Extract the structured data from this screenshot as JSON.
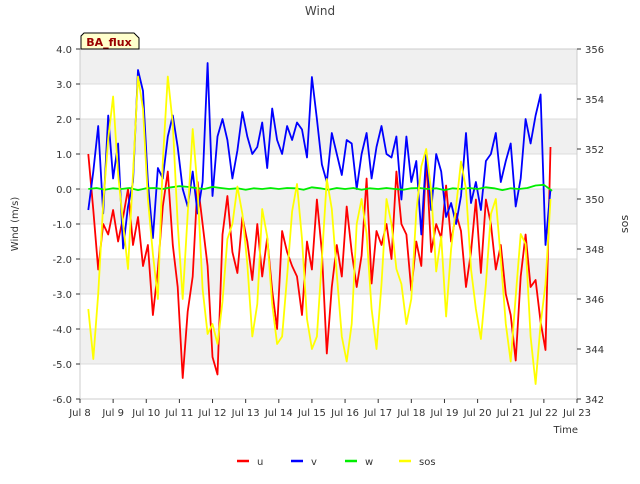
{
  "chart_data": {
    "type": "line",
    "title": "Wind",
    "annotation": "BA_flux",
    "xlabel": "Time",
    "ylabel_left": "Wind (m/s)",
    "ylabel_right": "sos",
    "x_range": [
      8.0,
      23.0
    ],
    "ylim_left": [
      -6.0,
      4.0
    ],
    "ylim_right": [
      342,
      356
    ],
    "x_ticks": [
      {
        "v": 8,
        "label": "Jul 8"
      },
      {
        "v": 9,
        "label": "Jul 9"
      },
      {
        "v": 10,
        "label": "Jul 10"
      },
      {
        "v": 11,
        "label": "Jul 11"
      },
      {
        "v": 12,
        "label": "Jul 12"
      },
      {
        "v": 13,
        "label": "Jul 13"
      },
      {
        "v": 14,
        "label": "Jul 14"
      },
      {
        "v": 15,
        "label": "Jul 15"
      },
      {
        "v": 16,
        "label": "Jul 16"
      },
      {
        "v": 17,
        "label": "Jul 17"
      },
      {
        "v": 18,
        "label": "Jul 18"
      },
      {
        "v": 19,
        "label": "Jul 19"
      },
      {
        "v": 20,
        "label": "Jul 20"
      },
      {
        "v": 21,
        "label": "Jul 21"
      },
      {
        "v": 22,
        "label": "Jul 22"
      },
      {
        "v": 23,
        "label": "Jul 23"
      }
    ],
    "y_ticks_left": [
      {
        "v": -6,
        "label": "-6.0"
      },
      {
        "v": -5,
        "label": "-5.0"
      },
      {
        "v": -4,
        "label": "-4.0"
      },
      {
        "v": -3,
        "label": "-3.0"
      },
      {
        "v": -2,
        "label": "-2.0"
      },
      {
        "v": -1,
        "label": "-1.0"
      },
      {
        "v": 0,
        "label": "0.0"
      },
      {
        "v": 1,
        "label": "1.0"
      },
      {
        "v": 2,
        "label": "2.0"
      },
      {
        "v": 3,
        "label": "3.0"
      },
      {
        "v": 4,
        "label": "4.0"
      }
    ],
    "y_ticks_right": [
      {
        "v": 342,
        "label": "342"
      },
      {
        "v": 344,
        "label": "344"
      },
      {
        "v": 346,
        "label": "346"
      },
      {
        "v": 348,
        "label": "348"
      },
      {
        "v": 350,
        "label": "350"
      },
      {
        "v": 352,
        "label": "352"
      },
      {
        "v": 354,
        "label": "354"
      },
      {
        "v": 356,
        "label": "356"
      }
    ],
    "grid": true,
    "legend_position": "bottom-center",
    "series": [
      {
        "name": "u",
        "color": "#ff0000",
        "axis": "left",
        "x": [
          8.25,
          8.4,
          8.55,
          8.7,
          8.85,
          9.0,
          9.15,
          9.3,
          9.45,
          9.6,
          9.75,
          9.9,
          10.05,
          10.2,
          10.35,
          10.5,
          10.65,
          10.8,
          10.95,
          11.1,
          11.25,
          11.4,
          11.55,
          11.7,
          11.85,
          12.0,
          12.15,
          12.3,
          12.45,
          12.6,
          12.75,
          12.9,
          13.05,
          13.2,
          13.35,
          13.5,
          13.65,
          13.8,
          13.95,
          14.1,
          14.25,
          14.4,
          14.55,
          14.7,
          14.85,
          15.0,
          15.15,
          15.3,
          15.45,
          15.6,
          15.75,
          15.9,
          16.05,
          16.2,
          16.35,
          16.5,
          16.65,
          16.8,
          16.95,
          17.1,
          17.25,
          17.4,
          17.55,
          17.7,
          17.85,
          18.0,
          18.15,
          18.3,
          18.45,
          18.6,
          18.75,
          18.9,
          19.05,
          19.2,
          19.35,
          19.5,
          19.65,
          19.8,
          19.95,
          20.1,
          20.25,
          20.4,
          20.55,
          20.7,
          20.85,
          21.0,
          21.15,
          21.3,
          21.45,
          21.6,
          21.75,
          21.9,
          22.05,
          22.2
        ],
        "y": [
          1.0,
          -0.6,
          -2.3,
          -1.0,
          -1.3,
          -0.6,
          -1.5,
          -0.8,
          0.0,
          -1.6,
          -0.8,
          -2.2,
          -1.6,
          -3.6,
          -2.3,
          -0.5,
          0.5,
          -1.6,
          -2.8,
          -5.4,
          -3.5,
          -2.5,
          0.2,
          -1.0,
          -2.2,
          -4.8,
          -5.3,
          -1.3,
          -0.2,
          -1.8,
          -2.4,
          -0.8,
          -1.5,
          -2.6,
          -1.0,
          -2.5,
          -1.4,
          -2.9,
          -4.0,
          -1.2,
          -1.8,
          -2.2,
          -2.5,
          -3.6,
          -1.5,
          -2.3,
          -0.3,
          -1.8,
          -4.7,
          -2.8,
          -1.6,
          -2.5,
          -0.5,
          -1.8,
          -2.8,
          -1.9,
          0.3,
          -2.7,
          -1.2,
          -1.6,
          -1.0,
          -2.0,
          0.5,
          -1.0,
          -1.3,
          -2.9,
          -1.5,
          -2.2,
          0.9,
          -1.8,
          -1.0,
          -1.4,
          0.1,
          -1.5,
          -0.7,
          -1.2,
          -2.8,
          -1.8,
          -0.3,
          -2.4,
          -0.3,
          -1.0,
          -2.3,
          -1.6,
          -3.0,
          -3.6,
          -4.9,
          -2.5,
          -1.3,
          -2.8,
          -2.6,
          -3.8,
          -4.6,
          1.2
        ]
      },
      {
        "name": "v",
        "color": "#0000ff",
        "axis": "left",
        "x": [
          8.25,
          8.4,
          8.55,
          8.7,
          8.85,
          9.0,
          9.15,
          9.3,
          9.45,
          9.6,
          9.75,
          9.9,
          10.05,
          10.2,
          10.35,
          10.5,
          10.65,
          10.8,
          10.95,
          11.1,
          11.25,
          11.4,
          11.55,
          11.7,
          11.85,
          12.0,
          12.15,
          12.3,
          12.45,
          12.6,
          12.75,
          12.9,
          13.05,
          13.2,
          13.35,
          13.5,
          13.65,
          13.8,
          13.95,
          14.1,
          14.25,
          14.4,
          14.55,
          14.7,
          14.85,
          15.0,
          15.15,
          15.3,
          15.45,
          15.6,
          15.75,
          15.9,
          16.05,
          16.2,
          16.35,
          16.5,
          16.65,
          16.8,
          16.95,
          17.1,
          17.25,
          17.4,
          17.55,
          17.7,
          17.85,
          18.0,
          18.15,
          18.3,
          18.45,
          18.6,
          18.75,
          18.9,
          19.05,
          19.2,
          19.35,
          19.5,
          19.65,
          19.8,
          19.95,
          20.1,
          20.25,
          20.4,
          20.55,
          20.7,
          20.85,
          21.0,
          21.15,
          21.3,
          21.45,
          21.6,
          21.75,
          21.9,
          22.05,
          22.2
        ],
        "y": [
          -0.6,
          0.5,
          1.8,
          -0.7,
          2.1,
          0.3,
          1.3,
          -1.7,
          -0.5,
          0.2,
          3.4,
          2.8,
          0.2,
          -1.4,
          0.6,
          0.3,
          1.5,
          2.1,
          1.2,
          0.0,
          -0.5,
          0.5,
          -0.7,
          0.2,
          3.6,
          -0.2,
          1.5,
          2.0,
          1.4,
          0.3,
          1.1,
          2.2,
          1.5,
          1.0,
          1.2,
          1.9,
          0.6,
          2.3,
          1.4,
          1.0,
          1.8,
          1.4,
          1.9,
          1.7,
          0.9,
          3.2,
          2.0,
          0.7,
          0.2,
          1.6,
          1.0,
          0.4,
          1.4,
          1.3,
          0.0,
          1.0,
          1.6,
          0.3,
          1.2,
          1.8,
          1.0,
          0.9,
          1.5,
          -0.3,
          1.5,
          0.2,
          0.8,
          -1.3,
          1.0,
          -0.6,
          1.0,
          0.5,
          -0.8,
          -0.4,
          -1.0,
          -0.2,
          1.6,
          -0.4,
          0.2,
          -0.6,
          0.8,
          1.0,
          1.6,
          0.2,
          0.8,
          1.3,
          -0.5,
          0.3,
          2.0,
          1.3,
          2.1,
          2.7,
          -1.6,
          0.0
        ]
      },
      {
        "name": "w",
        "color": "#00ee00",
        "axis": "left",
        "x": [
          8.25,
          8.5,
          8.75,
          9.0,
          9.25,
          9.5,
          9.75,
          10.0,
          10.25,
          10.5,
          10.75,
          11.0,
          11.25,
          11.5,
          11.75,
          12.0,
          12.25,
          12.5,
          12.75,
          13.0,
          13.25,
          13.5,
          13.75,
          14.0,
          14.25,
          14.5,
          14.75,
          15.0,
          15.25,
          15.5,
          15.75,
          16.0,
          16.25,
          16.5,
          16.75,
          17.0,
          17.25,
          17.5,
          17.75,
          18.0,
          18.25,
          18.5,
          18.75,
          19.0,
          19.25,
          19.5,
          19.75,
          20.0,
          20.25,
          20.5,
          20.75,
          21.0,
          21.25,
          21.5,
          21.75,
          22.0,
          22.25
        ],
        "y": [
          0.0,
          0.03,
          -0.02,
          0.02,
          0.0,
          0.03,
          -0.03,
          0.02,
          0.03,
          0.0,
          0.05,
          0.08,
          0.06,
          0.03,
          0.0,
          0.06,
          0.03,
          0.0,
          0.02,
          -0.02,
          0.02,
          0.0,
          0.03,
          0.0,
          0.03,
          0.02,
          -0.02,
          0.05,
          0.02,
          -0.02,
          0.03,
          0.0,
          0.03,
          -0.02,
          0.02,
          0.0,
          0.03,
          0.0,
          -0.02,
          0.02,
          0.03,
          0.0,
          0.02,
          -0.03,
          0.02,
          0.0,
          0.03,
          0.0,
          0.05,
          0.02,
          -0.03,
          0.02,
          0.0,
          0.03,
          0.1,
          0.12,
          -0.05
        ]
      },
      {
        "name": "sos",
        "color": "#ffff00",
        "axis": "right",
        "x": [
          8.25,
          8.4,
          8.55,
          8.7,
          8.85,
          9.0,
          9.15,
          9.3,
          9.45,
          9.6,
          9.75,
          9.9,
          10.05,
          10.2,
          10.35,
          10.5,
          10.65,
          10.8,
          10.95,
          11.1,
          11.25,
          11.4,
          11.55,
          11.7,
          11.85,
          12.0,
          12.15,
          12.3,
          12.45,
          12.6,
          12.75,
          12.9,
          13.05,
          13.2,
          13.35,
          13.5,
          13.65,
          13.8,
          13.95,
          14.1,
          14.25,
          14.4,
          14.55,
          14.7,
          14.85,
          15.0,
          15.15,
          15.3,
          15.45,
          15.6,
          15.75,
          15.9,
          16.05,
          16.2,
          16.35,
          16.5,
          16.65,
          16.8,
          16.95,
          17.1,
          17.25,
          17.4,
          17.55,
          17.7,
          17.85,
          18.0,
          18.15,
          18.3,
          18.45,
          18.6,
          18.75,
          18.9,
          19.05,
          19.2,
          19.35,
          19.5,
          19.65,
          19.8,
          19.95,
          20.1,
          20.25,
          20.4,
          20.55,
          20.7,
          20.85,
          21.0,
          21.15,
          21.3,
          21.45,
          21.6,
          21.75,
          21.9,
          22.05,
          22.2
        ],
        "y": [
          345.6,
          343.6,
          346.2,
          349.8,
          352.4,
          354.1,
          351.0,
          349.0,
          347.2,
          351.0,
          354.9,
          353.6,
          350.0,
          347.8,
          346.0,
          351.5,
          354.9,
          353.0,
          349.0,
          346.0,
          349.4,
          352.8,
          350.4,
          346.4,
          344.6,
          345.0,
          344.2,
          345.9,
          348.4,
          349.0,
          350.5,
          349.4,
          347.4,
          344.5,
          345.8,
          349.6,
          348.5,
          345.8,
          344.2,
          344.5,
          346.9,
          349.5,
          350.6,
          348.4,
          345.2,
          344.0,
          344.5,
          347.6,
          350.8,
          349.6,
          347.0,
          344.5,
          343.5,
          345.0,
          349.0,
          350.0,
          348.6,
          345.6,
          344.0,
          346.6,
          350.0,
          349.0,
          347.2,
          346.6,
          345.0,
          346.0,
          349.5,
          351.3,
          352.0,
          350.3,
          347.1,
          348.5,
          345.3,
          348.0,
          349.7,
          351.5,
          350.4,
          347.2,
          345.6,
          344.4,
          346.6,
          349.4,
          350.0,
          347.6,
          345.0,
          343.5,
          346.1,
          348.6,
          348.2,
          344.5,
          342.6,
          345.0,
          346.6,
          350.0
        ]
      }
    ]
  }
}
